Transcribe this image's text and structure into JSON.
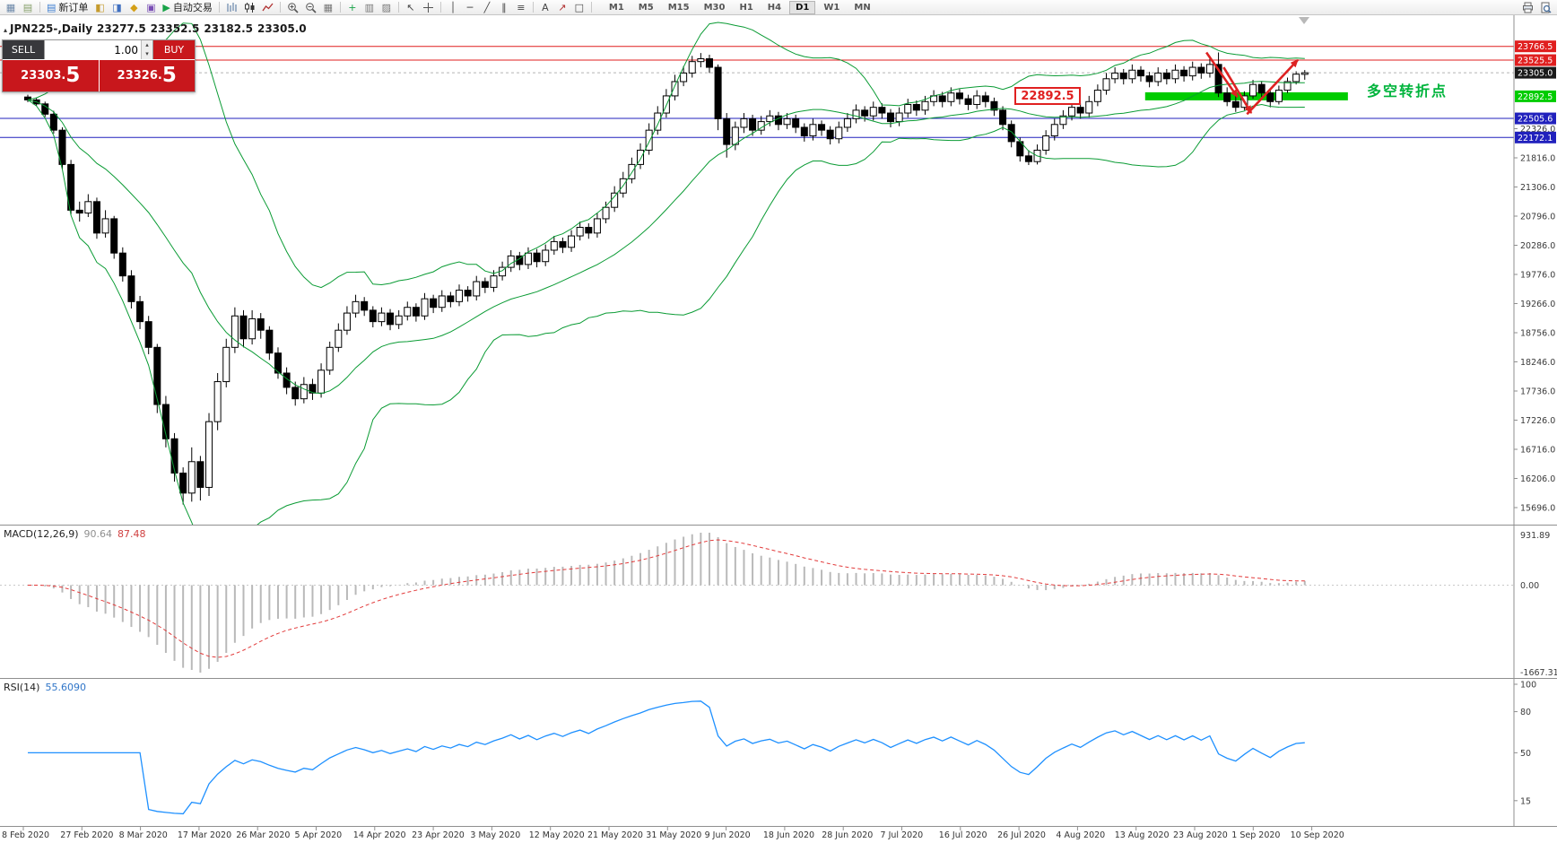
{
  "toolbar": {
    "items_left": [
      {
        "k": "i",
        "name": "new-chart-icon",
        "g": "▦",
        "c": "#6b87a8"
      },
      {
        "k": "i",
        "name": "profiles-icon",
        "g": "▤",
        "c": "#87a06b"
      },
      {
        "k": "s"
      },
      {
        "k": "b",
        "name": "new-order-button",
        "g": "▤",
        "gc": "#3f7fd2",
        "label": "新订单"
      },
      {
        "k": "i",
        "name": "market-watch-icon",
        "g": "◧",
        "c": "#c59b2d"
      },
      {
        "k": "i",
        "name": "data-window-icon",
        "g": "◨",
        "c": "#3f6fc0"
      },
      {
        "k": "i",
        "name": "navigator-icon",
        "g": "◆",
        "c": "#d4a017"
      },
      {
        "k": "i",
        "name": "terminal-icon",
        "g": "▣",
        "c": "#7a4fb5"
      },
      {
        "k": "b",
        "name": "autotrading-button",
        "g": "▶",
        "gc": "#18a348",
        "label": "自动交易"
      },
      {
        "k": "s"
      },
      {
        "k": "i",
        "name": "bar-chart-icon",
        "svg": true
      },
      {
        "k": "i",
        "name": "candlestick-icon",
        "svg": true
      },
      {
        "k": "i",
        "name": "line-chart-icon",
        "svg": true
      },
      {
        "k": "s"
      },
      {
        "k": "i",
        "name": "zoom-in-icon",
        "svg": true
      },
      {
        "k": "i",
        "name": "zoom-out-icon",
        "svg": true
      },
      {
        "k": "i",
        "name": "tile-windows-icon",
        "g": "▦",
        "c": "#777777"
      },
      {
        "k": "s"
      },
      {
        "k": "i",
        "name": "indicators-icon",
        "g": "+",
        "c": "#18a348"
      },
      {
        "k": "i",
        "name": "periods-icon",
        "g": "▥",
        "c": "#777777"
      },
      {
        "k": "i",
        "name": "templates-icon",
        "g": "▨",
        "c": "#777777"
      },
      {
        "k": "s"
      },
      {
        "k": "i",
        "name": "cursor-icon",
        "g": "↖",
        "c": "#444444"
      },
      {
        "k": "i",
        "name": "crosshair-icon",
        "svg": true
      },
      {
        "k": "s"
      },
      {
        "k": "i",
        "name": "vertical-line-icon",
        "g": "│",
        "c": "#444444"
      },
      {
        "k": "i",
        "name": "horizontal-line-icon",
        "g": "─",
        "c": "#444444"
      },
      {
        "k": "i",
        "name": "trendline-icon",
        "g": "╱",
        "c": "#444444"
      },
      {
        "k": "i",
        "name": "channel-icon",
        "g": "∥",
        "c": "#444444"
      },
      {
        "k": "i",
        "name": "fibonacci-icon",
        "g": "≡",
        "c": "#444444"
      },
      {
        "k": "s"
      },
      {
        "k": "i",
        "name": "text-icon",
        "g": "A",
        "c": "#444444"
      },
      {
        "k": "i",
        "name": "arrows-icon",
        "g": "↗",
        "c": "#b03030"
      },
      {
        "k": "i",
        "name": "shapes-icon",
        "g": "□",
        "c": "#444444"
      },
      {
        "k": "s"
      }
    ],
    "timeframes": [
      {
        "label": "M1"
      },
      {
        "label": "M5"
      },
      {
        "label": "M15"
      },
      {
        "label": "M30"
      },
      {
        "label": "H1"
      },
      {
        "label": "H4"
      },
      {
        "label": "D1",
        "active": true
      },
      {
        "label": "W1"
      },
      {
        "label": "MN"
      }
    ],
    "items_right": [
      {
        "k": "i",
        "name": "print-icon",
        "svg": true
      },
      {
        "k": "i",
        "name": "preview-icon",
        "svg": true
      }
    ]
  },
  "chart_header": {
    "marker": "▴",
    "symbol_period": "JPN225-,Daily",
    "open": "23277.5",
    "high": "23352.5",
    "low": "23182.5",
    "close": "23305.0"
  },
  "one_click": {
    "sell_label": "SELL",
    "buy_label": "BUY",
    "volume": "1.00",
    "spin_up": "▴",
    "spin_down": "▾",
    "sell_price": "23303.",
    "sell_price_big": "5",
    "buy_price": "23326.",
    "buy_price_big": "5"
  },
  "panel_titles": {
    "macd_label": "MACD(12,26,9)",
    "macd_value1": "90.64",
    "macd_value2": "87.48",
    "rsi_label": "RSI(14)",
    "rsi_value": "55.6090"
  },
  "annotations": {
    "zone_price_label": "22892.5",
    "turning_point_label": "多空转折点"
  },
  "chart_data": {
    "type": "candlestick",
    "symbol": "JPN225-",
    "timeframe": "Daily",
    "last_ohlc": [
      23277.5,
      23352.5,
      23182.5,
      23305.0
    ],
    "bid_price": 23305.0,
    "y_axis_ticks": [
      "22326.0",
      "21816.0",
      "21306.0",
      "20796.0",
      "20286.0",
      "19776.0",
      "19266.0",
      "18756.0",
      "18246.0",
      "17736.0",
      "17226.0",
      "16716.0",
      "16206.0",
      "15696.0"
    ],
    "axis_price_markers": [
      {
        "text": "23766.5",
        "color": "#e01f1f"
      },
      {
        "text": "23525.5",
        "color": "#e01f1f"
      },
      {
        "text": "23305.0",
        "color": "#1a1a1a"
      },
      {
        "text": "22892.5",
        "color": "#00cc00"
      },
      {
        "text": "22505.6",
        "color": "#2121bd"
      },
      {
        "text": "22172.1",
        "color": "#2121bd"
      }
    ],
    "horizontal_lines": [
      {
        "price": 23766.5,
        "color": "#e01f1f"
      },
      {
        "price": 23525.5,
        "color": "#e01f1f"
      },
      {
        "price": 22505.6,
        "color": "#2121bd"
      },
      {
        "price": 22172.1,
        "color": "#2121bd"
      }
    ],
    "support_zone": {
      "price": 22892.5,
      "bar_start": 129.5,
      "bar_end": 153,
      "color": "#00cc00"
    },
    "arrows_color": "#dd2222",
    "arrows": [
      {
        "from_bar": 136.6,
        "from_price": 23660,
        "to_bar": 140.2,
        "to_price": 22880
      },
      {
        "from_bar": 138.6,
        "from_price": 23400,
        "to_bar": 141.8,
        "to_price": 22600
      },
      {
        "from_bar": 141.3,
        "from_price": 22580,
        "to_bar": 147.2,
        "to_price": 23530
      }
    ],
    "date_labels": [
      "8 Feb 2020",
      "27 Feb 2020",
      "8 Mar 2020",
      "17 Mar 2020",
      "26 Mar 2020",
      "5 Apr 2020",
      "14 Apr 2020",
      "23 Apr 2020",
      "3 May 2020",
      "12 May 2020",
      "21 May 2020",
      "31 May 2020",
      "9 Jun 2020",
      "18 Jun 2020",
      "28 Jun 2020",
      "7 Jul 2020",
      "16 Jul 2020",
      "26 Jul 2020",
      "4 Aug 2020",
      "13 Aug 2020",
      "23 Aug 2020",
      "1 Sep 2020",
      "10 Sep 2020"
    ],
    "indicators": {
      "bollinger": {
        "period": 20,
        "deviation": 2,
        "color": "#0a9b34"
      },
      "macd": {
        "fast": 12,
        "slow": 26,
        "signal": 9,
        "current_values": [
          90.64,
          87.48
        ],
        "scale_labels": [
          "931.89",
          "0.00",
          "-1667.31"
        ],
        "histogram_color": "#b9b9b9",
        "signal_color": "#e23a3a"
      },
      "rsi": {
        "period": 14,
        "current_value": 55.609,
        "scale_ticks": [
          100,
          80,
          50,
          15
        ],
        "line_color": "#1e90ff"
      }
    },
    "ohlc": [
      [
        22880,
        22920,
        22790,
        22830
      ],
      [
        22830,
        22870,
        22720,
        22760
      ],
      [
        22760,
        22800,
        22530,
        22580
      ],
      [
        22580,
        22640,
        22240,
        22300
      ],
      [
        22300,
        22350,
        21620,
        21700
      ],
      [
        21700,
        21780,
        20820,
        20900
      ],
      [
        20900,
        21050,
        20700,
        20850
      ],
      [
        20850,
        21180,
        20780,
        21050
      ],
      [
        21050,
        21120,
        20400,
        20500
      ],
      [
        20500,
        20900,
        20420,
        20750
      ],
      [
        20750,
        20800,
        20050,
        20150
      ],
      [
        20150,
        20250,
        19650,
        19750
      ],
      [
        19750,
        19850,
        19180,
        19300
      ],
      [
        19300,
        19400,
        18820,
        18950
      ],
      [
        18950,
        19050,
        18380,
        18500
      ],
      [
        18500,
        18560,
        17350,
        17500
      ],
      [
        17500,
        17650,
        16750,
        16900
      ],
      [
        16900,
        17000,
        16150,
        16300
      ],
      [
        16300,
        16400,
        15750,
        15950
      ],
      [
        15950,
        16750,
        15800,
        16500
      ],
      [
        16500,
        16600,
        15820,
        16050
      ],
      [
        16050,
        17350,
        15900,
        17200
      ],
      [
        17200,
        18050,
        17050,
        17900
      ],
      [
        17900,
        18650,
        17800,
        18500
      ],
      [
        18500,
        19200,
        18400,
        19050
      ],
      [
        19050,
        19150,
        18500,
        18650
      ],
      [
        18650,
        19150,
        18550,
        19000
      ],
      [
        19000,
        19100,
        18650,
        18800
      ],
      [
        18800,
        18870,
        18280,
        18400
      ],
      [
        18400,
        18500,
        17950,
        18050
      ],
      [
        18050,
        18150,
        17680,
        17800
      ],
      [
        17800,
        17900,
        17480,
        17600
      ],
      [
        17600,
        17980,
        17520,
        17850
      ],
      [
        17850,
        17950,
        17580,
        17700
      ],
      [
        17700,
        18220,
        17620,
        18100
      ],
      [
        18100,
        18600,
        18020,
        18500
      ],
      [
        18500,
        18920,
        18420,
        18800
      ],
      [
        18800,
        19220,
        18720,
        19100
      ],
      [
        19100,
        19420,
        19020,
        19300
      ],
      [
        19300,
        19380,
        19050,
        19150
      ],
      [
        19150,
        19220,
        18850,
        18950
      ],
      [
        18950,
        19200,
        18870,
        19100
      ],
      [
        19100,
        19170,
        18800,
        18900
      ],
      [
        18900,
        19150,
        18820,
        19050
      ],
      [
        19050,
        19300,
        18970,
        19200
      ],
      [
        19200,
        19270,
        18950,
        19050
      ],
      [
        19050,
        19450,
        18980,
        19350
      ],
      [
        19350,
        19420,
        19100,
        19200
      ],
      [
        19200,
        19500,
        19120,
        19400
      ],
      [
        19400,
        19470,
        19200,
        19300
      ],
      [
        19300,
        19600,
        19220,
        19500
      ],
      [
        19500,
        19570,
        19300,
        19400
      ],
      [
        19400,
        19750,
        19320,
        19650
      ],
      [
        19650,
        19720,
        19450,
        19550
      ],
      [
        19550,
        19850,
        19470,
        19750
      ],
      [
        19750,
        20000,
        19670,
        19900
      ],
      [
        19900,
        20200,
        19820,
        20100
      ],
      [
        20100,
        20170,
        19850,
        19950
      ],
      [
        19950,
        20250,
        19870,
        20150
      ],
      [
        20150,
        20220,
        19900,
        20000
      ],
      [
        20000,
        20300,
        19920,
        20200
      ],
      [
        20200,
        20450,
        20120,
        20350
      ],
      [
        20350,
        20420,
        20150,
        20250
      ],
      [
        20250,
        20550,
        20170,
        20450
      ],
      [
        20450,
        20700,
        20370,
        20600
      ],
      [
        20600,
        20670,
        20400,
        20500
      ],
      [
        20500,
        20850,
        20420,
        20750
      ],
      [
        20750,
        21050,
        20670,
        20950
      ],
      [
        20950,
        21320,
        20870,
        21200
      ],
      [
        21200,
        21570,
        21120,
        21450
      ],
      [
        21450,
        21820,
        21370,
        21700
      ],
      [
        21700,
        22070,
        21620,
        21950
      ],
      [
        21950,
        22420,
        21870,
        22300
      ],
      [
        22300,
        22720,
        22220,
        22600
      ],
      [
        22600,
        23020,
        22520,
        22900
      ],
      [
        22900,
        23270,
        22820,
        23150
      ],
      [
        23150,
        23420,
        23070,
        23300
      ],
      [
        23300,
        23600,
        23220,
        23500
      ],
      [
        23500,
        23650,
        23400,
        23550
      ],
      [
        23550,
        23620,
        23300,
        23400
      ],
      [
        23400,
        23450,
        22300,
        22500
      ],
      [
        22500,
        22600,
        21820,
        22050
      ],
      [
        22050,
        22450,
        21950,
        22350
      ],
      [
        22350,
        22600,
        22250,
        22500
      ],
      [
        22500,
        22570,
        22200,
        22300
      ],
      [
        22300,
        22550,
        22220,
        22450
      ],
      [
        22450,
        22650,
        22370,
        22550
      ],
      [
        22550,
        22620,
        22300,
        22400
      ],
      [
        22400,
        22600,
        22320,
        22500
      ],
      [
        22500,
        22570,
        22250,
        22350
      ],
      [
        22350,
        22420,
        22100,
        22200
      ],
      [
        22200,
        22500,
        22120,
        22400
      ],
      [
        22400,
        22470,
        22200,
        22300
      ],
      [
        22300,
        22370,
        22050,
        22150
      ],
      [
        22150,
        22450,
        22070,
        22350
      ],
      [
        22350,
        22600,
        22270,
        22500
      ],
      [
        22500,
        22750,
        22420,
        22650
      ],
      [
        22650,
        22720,
        22450,
        22550
      ],
      [
        22550,
        22800,
        22470,
        22700
      ],
      [
        22700,
        22770,
        22500,
        22600
      ],
      [
        22600,
        22670,
        22350,
        22450
      ],
      [
        22450,
        22700,
        22370,
        22600
      ],
      [
        22600,
        22850,
        22520,
        22750
      ],
      [
        22750,
        22820,
        22550,
        22650
      ],
      [
        22650,
        22900,
        22570,
        22800
      ],
      [
        22800,
        23000,
        22720,
        22900
      ],
      [
        22900,
        22970,
        22700,
        22800
      ],
      [
        22800,
        23050,
        22720,
        22950
      ],
      [
        22950,
        23020,
        22750,
        22850
      ],
      [
        22850,
        22920,
        22650,
        22750
      ],
      [
        22750,
        23000,
        22670,
        22900
      ],
      [
        22900,
        22970,
        22700,
        22800
      ],
      [
        22800,
        22870,
        22550,
        22650
      ],
      [
        22650,
        22720,
        22300,
        22400
      ],
      [
        22400,
        22470,
        22000,
        22100
      ],
      [
        22100,
        22170,
        21750,
        21850
      ],
      [
        21850,
        21950,
        21690,
        21750
      ],
      [
        21750,
        22050,
        21700,
        21950
      ],
      [
        21950,
        22300,
        21870,
        22200
      ],
      [
        22200,
        22500,
        22120,
        22400
      ],
      [
        22400,
        22650,
        22320,
        22550
      ],
      [
        22550,
        22800,
        22470,
        22700
      ],
      [
        22700,
        22770,
        22500,
        22600
      ],
      [
        22600,
        22900,
        22520,
        22800
      ],
      [
        22800,
        23100,
        22720,
        23000
      ],
      [
        23000,
        23300,
        22920,
        23200
      ],
      [
        23200,
        23400,
        23120,
        23300
      ],
      [
        23300,
        23370,
        23100,
        23200
      ],
      [
        23200,
        23450,
        23120,
        23350
      ],
      [
        23350,
        23420,
        23150,
        23250
      ],
      [
        23250,
        23320,
        23050,
        23150
      ],
      [
        23150,
        23400,
        23070,
        23300
      ],
      [
        23300,
        23370,
        23100,
        23200
      ],
      [
        23200,
        23450,
        23120,
        23350
      ],
      [
        23350,
        23420,
        23150,
        23250
      ],
      [
        23250,
        23500,
        23170,
        23400
      ],
      [
        23400,
        23470,
        23200,
        23300
      ],
      [
        23300,
        23600,
        23220,
        23450
      ],
      [
        23450,
        23660,
        22880,
        22950
      ],
      [
        22950,
        23050,
        22720,
        22800
      ],
      [
        22800,
        22900,
        22620,
        22700
      ],
      [
        22700,
        22980,
        22650,
        22900
      ],
      [
        22900,
        23180,
        22850,
        23100
      ],
      [
        23100,
        23160,
        22880,
        22950
      ],
      [
        22950,
        23000,
        22700,
        22800
      ],
      [
        22800,
        23080,
        22750,
        23000
      ],
      [
        23000,
        23220,
        22950,
        23150
      ],
      [
        23150,
        23330,
        23100,
        23280
      ],
      [
        23277.5,
        23352.5,
        23182.5,
        23305
      ]
    ]
  }
}
